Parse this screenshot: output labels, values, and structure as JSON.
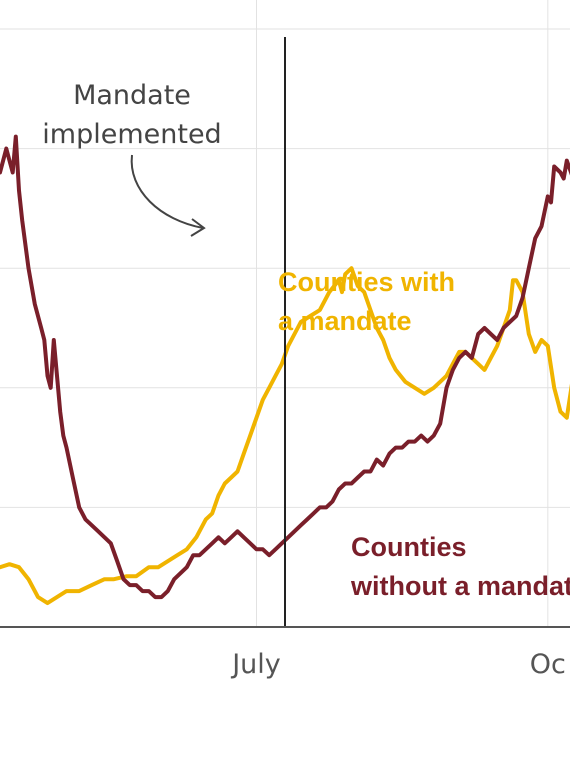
{
  "chart_data": {
    "type": "line",
    "title": "",
    "xlabel": "",
    "ylabel": "",
    "x_ticks": [
      {
        "label": "July",
        "day": 96
      },
      {
        "label": "Oc",
        "day": 188
      }
    ],
    "x_range": [
      15,
      195
    ],
    "ylim": [
      0,
      100
    ],
    "y_gridlines": [
      20,
      40,
      60,
      80,
      100
    ],
    "grid": true,
    "event": {
      "label_lines": [
        "Mandate",
        "implemented"
      ],
      "day": 105
    },
    "series": [
      {
        "name": "Counties with a mandate",
        "label_lines": [
          "Counties with",
          "a mandate"
        ],
        "color": "#f0b400",
        "points": [
          [
            15,
            10
          ],
          [
            18,
            10.5
          ],
          [
            21,
            10
          ],
          [
            24,
            8
          ],
          [
            27,
            5
          ],
          [
            30,
            4
          ],
          [
            33,
            5
          ],
          [
            36,
            6
          ],
          [
            40,
            6
          ],
          [
            44,
            7
          ],
          [
            48,
            8
          ],
          [
            51,
            8
          ],
          [
            55,
            8.5
          ],
          [
            58,
            8.5
          ],
          [
            62,
            10
          ],
          [
            65,
            10
          ],
          [
            68,
            11
          ],
          [
            71,
            12
          ],
          [
            74,
            13
          ],
          [
            77,
            15
          ],
          [
            80,
            18
          ],
          [
            82,
            19
          ],
          [
            84,
            22
          ],
          [
            86,
            24
          ],
          [
            88,
            25
          ],
          [
            90,
            26
          ],
          [
            92,
            29
          ],
          [
            94,
            32
          ],
          [
            96,
            35
          ],
          [
            98,
            38
          ],
          [
            100,
            40
          ],
          [
            102,
            42
          ],
          [
            104,
            44
          ],
          [
            106,
            47
          ],
          [
            108,
            49
          ],
          [
            110,
            51
          ],
          [
            113,
            52
          ],
          [
            116,
            53
          ],
          [
            119,
            56
          ],
          [
            122,
            58
          ],
          [
            123,
            56
          ],
          [
            124,
            59
          ],
          [
            126,
            60
          ],
          [
            128,
            57
          ],
          [
            130,
            56
          ],
          [
            132,
            53
          ],
          [
            134,
            50
          ],
          [
            136,
            48
          ],
          [
            138,
            45
          ],
          [
            140,
            43
          ],
          [
            143,
            41
          ],
          [
            146,
            40
          ],
          [
            149,
            39
          ],
          [
            152,
            40
          ],
          [
            154,
            41
          ],
          [
            156,
            42
          ],
          [
            158,
            44
          ],
          [
            160,
            46
          ],
          [
            162,
            46
          ],
          [
            164,
            45
          ],
          [
            166,
            44
          ],
          [
            168,
            43
          ],
          [
            170,
            45
          ],
          [
            172,
            47
          ],
          [
            174,
            50
          ],
          [
            176,
            53
          ],
          [
            177,
            58
          ],
          [
            178,
            58
          ],
          [
            180,
            56
          ],
          [
            182,
            49
          ],
          [
            184,
            46
          ],
          [
            186,
            48
          ],
          [
            188,
            47
          ],
          [
            190,
            40
          ],
          [
            192,
            36
          ],
          [
            194,
            35
          ],
          [
            196,
            42
          ],
          [
            198,
            40
          ],
          [
            200,
            44
          ]
        ]
      },
      {
        "name": "Counties without a mandate",
        "label_lines": [
          "Counties",
          "without a mandate"
        ],
        "color": "#7a1f2a",
        "points": [
          [
            14,
            76
          ],
          [
            15,
            76
          ],
          [
            17,
            80
          ],
          [
            18,
            78
          ],
          [
            19,
            76
          ],
          [
            20,
            82
          ],
          [
            21,
            73
          ],
          [
            22,
            68
          ],
          [
            24,
            60
          ],
          [
            26,
            54
          ],
          [
            28,
            50
          ],
          [
            29,
            48
          ],
          [
            30,
            42
          ],
          [
            31,
            40
          ],
          [
            32,
            48
          ],
          [
            33,
            42
          ],
          [
            34,
            36
          ],
          [
            35,
            32
          ],
          [
            36,
            30
          ],
          [
            38,
            25
          ],
          [
            40,
            20
          ],
          [
            42,
            18
          ],
          [
            44,
            17
          ],
          [
            46,
            16
          ],
          [
            48,
            15
          ],
          [
            50,
            14
          ],
          [
            52,
            11
          ],
          [
            54,
            8
          ],
          [
            56,
            7
          ],
          [
            58,
            7
          ],
          [
            60,
            6
          ],
          [
            62,
            6
          ],
          [
            64,
            5
          ],
          [
            66,
            5
          ],
          [
            68,
            6
          ],
          [
            70,
            8
          ],
          [
            72,
            9
          ],
          [
            74,
            10
          ],
          [
            76,
            12
          ],
          [
            78,
            12
          ],
          [
            80,
            13
          ],
          [
            82,
            14
          ],
          [
            84,
            15
          ],
          [
            86,
            14
          ],
          [
            88,
            15
          ],
          [
            90,
            16
          ],
          [
            92,
            15
          ],
          [
            94,
            14
          ],
          [
            96,
            13
          ],
          [
            98,
            13
          ],
          [
            100,
            12
          ],
          [
            102,
            13
          ],
          [
            104,
            14
          ],
          [
            106,
            15
          ],
          [
            108,
            16
          ],
          [
            110,
            17
          ],
          [
            112,
            18
          ],
          [
            114,
            19
          ],
          [
            116,
            20
          ],
          [
            118,
            20
          ],
          [
            120,
            21
          ],
          [
            122,
            23
          ],
          [
            124,
            24
          ],
          [
            126,
            24
          ],
          [
            128,
            25
          ],
          [
            130,
            26
          ],
          [
            132,
            26
          ],
          [
            134,
            28
          ],
          [
            136,
            27
          ],
          [
            138,
            29
          ],
          [
            140,
            30
          ],
          [
            142,
            30
          ],
          [
            144,
            31
          ],
          [
            146,
            31
          ],
          [
            148,
            32
          ],
          [
            150,
            31
          ],
          [
            152,
            32
          ],
          [
            154,
            34
          ],
          [
            156,
            40
          ],
          [
            158,
            43
          ],
          [
            160,
            45
          ],
          [
            162,
            46
          ],
          [
            164,
            45
          ],
          [
            166,
            49
          ],
          [
            168,
            50
          ],
          [
            170,
            49
          ],
          [
            172,
            48
          ],
          [
            174,
            50
          ],
          [
            176,
            51
          ],
          [
            178,
            52
          ],
          [
            180,
            55
          ],
          [
            182,
            60
          ],
          [
            184,
            65
          ],
          [
            186,
            67
          ],
          [
            188,
            72
          ],
          [
            189,
            71
          ],
          [
            190,
            77
          ],
          [
            192,
            76
          ],
          [
            193,
            75
          ],
          [
            194,
            78
          ],
          [
            196,
            75
          ],
          [
            198,
            76
          ],
          [
            200,
            77
          ]
        ]
      }
    ]
  }
}
